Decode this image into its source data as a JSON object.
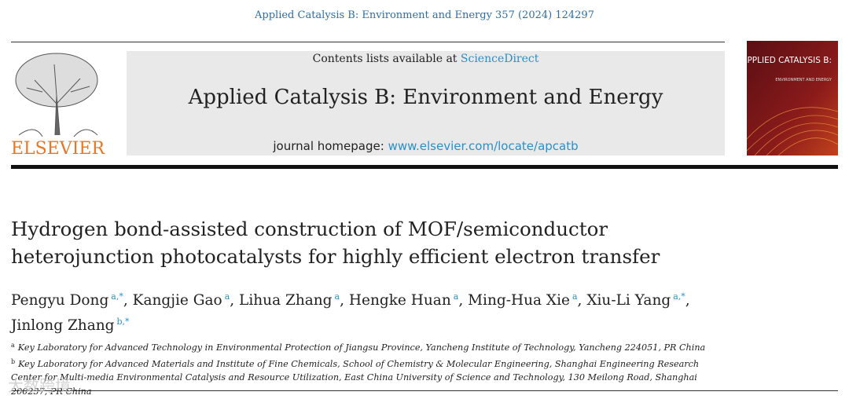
{
  "header": {
    "citation": "Applied Catalysis B: Environment and Energy 357 (2024) 124297",
    "publisher": "ELSEVIER",
    "contents_prefix": "Contents lists available at",
    "contents_link": "ScienceDirect",
    "journal_title": "Applied Catalysis B: Environment and Energy",
    "homepage_prefix": "journal homepage:",
    "homepage_link": "www.elsevier.com/locate/apcatb",
    "cover_title": "APPLIED CATALYSIS B:",
    "cover_subtitle": "ENVIRONMENT AND ENERGY"
  },
  "article": {
    "title_lines": [
      "Hydrogen bond-assisted construction of MOF/semiconductor",
      "heterojunction photocatalysts for highly efficient electron transfer"
    ],
    "author_separator": ",",
    "authors": [
      {
        "name": "Pengyu Dong",
        "affil": "a,*"
      },
      {
        "name": "Kangjie Gao",
        "affil": "a"
      },
      {
        "name": "Lihua Zhang",
        "affil": "a"
      },
      {
        "name": "Hengke Huan",
        "affil": "a"
      },
      {
        "name": "Ming-Hua Xie",
        "affil": "a"
      },
      {
        "name": "Xiu-Li Yang",
        "affil": "a,*"
      },
      {
        "name": "Jinlong Zhang",
        "affil": "b,*"
      }
    ],
    "affiliations": [
      {
        "label": "a",
        "text": "Key Laboratory for Advanced Technology in Environmental Protection of Jiangsu Province, Yancheng Institute of Technology, Yancheng 224051, PR China"
      },
      {
        "label": "b",
        "text": "Key Laboratory for Advanced Materials and Institute of Fine Chemicals, School of Chemistry & Molecular Engineering, Shanghai Engineering Research Center for Multi-media Environmental Catalysis and Resource Utilization, East China University of Science and Technology, 130 Meilong Road, Shanghai 200237, PR China"
      }
    ]
  },
  "watermark": "大数跨境"
}
